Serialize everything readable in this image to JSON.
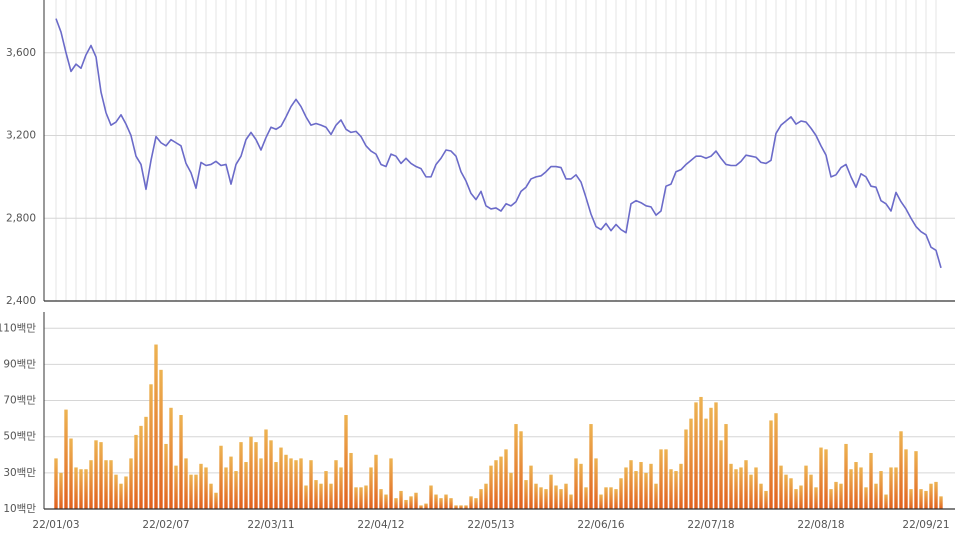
{
  "chart_data": [
    {
      "type": "line",
      "color": "#6b6bc9",
      "values": [
        3765,
        3700,
        3600,
        3510,
        3545,
        3525,
        3590,
        3635,
        3580,
        3410,
        3310,
        3250,
        3265,
        3300,
        3255,
        3200,
        3100,
        3060,
        2940,
        3080,
        3195,
        3165,
        3150,
        3180,
        3165,
        3150,
        3065,
        3020,
        2945,
        3070,
        3055,
        3060,
        3075,
        3055,
        3060,
        2965,
        3060,
        3100,
        3180,
        3215,
        3180,
        3130,
        3190,
        3240,
        3230,
        3245,
        3290,
        3340,
        3375,
        3340,
        3290,
        3250,
        3258,
        3250,
        3240,
        3205,
        3250,
        3275,
        3230,
        3215,
        3220,
        3195,
        3150,
        3125,
        3110,
        3060,
        3050,
        3110,
        3100,
        3065,
        3090,
        3065,
        3050,
        3040,
        3000,
        3000,
        3060,
        3090,
        3130,
        3125,
        3100,
        3025,
        2980,
        2920,
        2890,
        2930,
        2860,
        2845,
        2850,
        2835,
        2870,
        2860,
        2880,
        2930,
        2950,
        2990,
        3000,
        3005,
        3025,
        3050,
        3050,
        3045,
        2990,
        2990,
        3010,
        2975,
        2900,
        2820,
        2760,
        2745,
        2775,
        2740,
        2770,
        2745,
        2730,
        2870,
        2885,
        2875,
        2860,
        2855,
        2815,
        2835,
        2955,
        2965,
        3025,
        3035,
        3060,
        3080,
        3100,
        3100,
        3090,
        3100,
        3125,
        3090,
        3060,
        3055,
        3055,
        3075,
        3105,
        3100,
        3095,
        3070,
        3065,
        3080,
        3210,
        3250,
        3270,
        3290,
        3255,
        3270,
        3265,
        3235,
        3200,
        3150,
        3105,
        3000,
        3010,
        3045,
        3060,
        3000,
        2950,
        3015,
        3000,
        2955,
        2950,
        2885,
        2870,
        2835,
        2925,
        2880,
        2845,
        2800,
        2760,
        2735,
        2720,
        2660,
        2645,
        2560
      ],
      "ylim": [
        2400,
        3855
      ],
      "yticks": [
        {
          "value": 2400,
          "label": "2,400"
        },
        {
          "value": 2800,
          "label": "2,800"
        },
        {
          "value": 3200,
          "label": "3,200"
        },
        {
          "value": 3600,
          "label": "3,600"
        }
      ],
      "grid": true
    },
    {
      "type": "bar",
      "colors": [
        "#edb352",
        "#e0601e"
      ],
      "categories": [
        "22/01/03",
        null,
        null,
        null,
        null,
        null,
        null,
        null,
        null,
        null,
        null,
        null,
        null,
        null,
        null,
        null,
        null,
        null,
        null,
        null,
        null,
        null,
        "22/02/07",
        null,
        null,
        null,
        null,
        null,
        null,
        null,
        null,
        null,
        null,
        null,
        null,
        null,
        null,
        null,
        null,
        null,
        null,
        null,
        null,
        "22/03/11",
        null,
        null,
        null,
        null,
        null,
        null,
        null,
        null,
        null,
        null,
        null,
        null,
        null,
        null,
        null,
        null,
        null,
        null,
        null,
        null,
        null,
        "22/04/12",
        null,
        null,
        null,
        null,
        null,
        null,
        null,
        null,
        null,
        null,
        null,
        null,
        null,
        null,
        null,
        null,
        null,
        null,
        null,
        null,
        null,
        "22/05/13",
        null,
        null,
        null,
        null,
        null,
        null,
        null,
        null,
        null,
        null,
        null,
        null,
        null,
        null,
        null,
        null,
        null,
        null,
        null,
        null,
        null,
        "22/06/16",
        null,
        null,
        null,
        null,
        null,
        null,
        null,
        null,
        null,
        null,
        null,
        null,
        null,
        null,
        null,
        null,
        null,
        null,
        null,
        null,
        null,
        "22/07/18",
        null,
        null,
        null,
        null,
        null,
        null,
        null,
        null,
        null,
        null,
        null,
        null,
        null,
        null,
        null,
        null,
        null,
        null,
        null,
        null,
        null,
        "22/08/18",
        null,
        null,
        null,
        null,
        null,
        null,
        null,
        null,
        null,
        null,
        null,
        null,
        null,
        null,
        null,
        null,
        null,
        null,
        null,
        null,
        "22/09/21",
        null,
        null,
        null
      ],
      "values": [
        38,
        30,
        65,
        49,
        33,
        32,
        32,
        37,
        48,
        47,
        37,
        37,
        29,
        24,
        28,
        38,
        51,
        56,
        61,
        79,
        101,
        87,
        46,
        66,
        34,
        62,
        38,
        29,
        29,
        35,
        33,
        24,
        19,
        45,
        33,
        39,
        31,
        47,
        36,
        50,
        47,
        38,
        54,
        48,
        36,
        44,
        40,
        38,
        37,
        38,
        23,
        37,
        26,
        24,
        31,
        24,
        37,
        33,
        62,
        41,
        22,
        22,
        23,
        33,
        40,
        21,
        18,
        38,
        16,
        20,
        15,
        17,
        19,
        12,
        13,
        23,
        18,
        16,
        18,
        16,
        12,
        12,
        12,
        17,
        16,
        21,
        24,
        34,
        37,
        39,
        43,
        30,
        57,
        53,
        26,
        34,
        24,
        22,
        21,
        29,
        23,
        21,
        24,
        18,
        38,
        35,
        22,
        57,
        38,
        18,
        22,
        22,
        21,
        27,
        33,
        37,
        31,
        36,
        30,
        35,
        24,
        43,
        43,
        32,
        31,
        35,
        54,
        60,
        69,
        72,
        60,
        66,
        69,
        48,
        57,
        35,
        32,
        33,
        37,
        29,
        33,
        24,
        20,
        59,
        63,
        34,
        29,
        27,
        21,
        23,
        34,
        29,
        22,
        44,
        43,
        21,
        25,
        24,
        46,
        32,
        36,
        33,
        22,
        41,
        24,
        31,
        18,
        33,
        33,
        53,
        43,
        21,
        42,
        21,
        20,
        24,
        25,
        17
      ],
      "ylim": [
        10,
        119
      ],
      "yticks": [
        {
          "value": 10,
          "label": "10백만"
        },
        {
          "value": 30,
          "label": "30백만"
        },
        {
          "value": 50,
          "label": "50백만"
        },
        {
          "value": 70,
          "label": "70백만"
        },
        {
          "value": 90,
          "label": "90백만"
        },
        {
          "value": 110,
          "label": "110백만"
        }
      ],
      "grid": true
    }
  ]
}
